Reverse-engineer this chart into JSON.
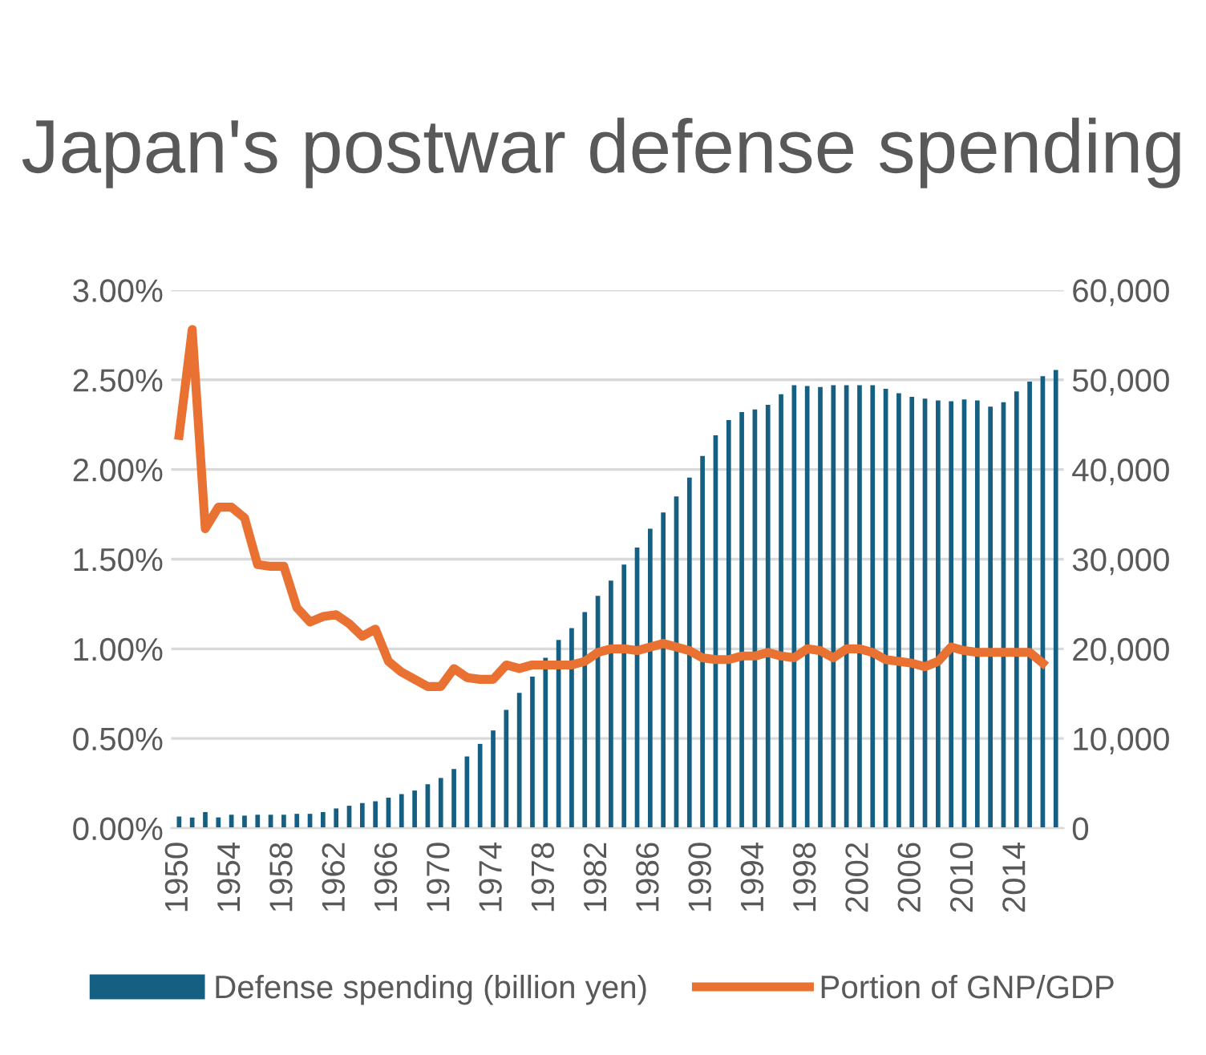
{
  "chart_data": {
    "type": "bar",
    "title": "Japan's postwar defense spending",
    "categories": [
      "1950",
      null,
      null,
      null,
      "1954",
      null,
      null,
      null,
      "1958",
      null,
      null,
      null,
      "1962",
      null,
      null,
      null,
      "1966",
      null,
      null,
      null,
      "1970",
      null,
      null,
      null,
      "1974",
      null,
      null,
      null,
      "1978",
      null,
      null,
      null,
      "1982",
      null,
      null,
      null,
      "1986",
      null,
      null,
      null,
      "1990",
      null,
      null,
      null,
      "1994",
      null,
      null,
      null,
      "1998",
      null,
      null,
      null,
      "2002",
      null,
      null,
      null,
      "2006",
      null,
      null,
      null,
      "2010",
      null,
      null,
      null,
      "2014",
      null,
      null,
      null
    ],
    "series": [
      {
        "name": "Defense spending (billion yen)",
        "axis": "y2",
        "color": "#156082",
        "values": [
          1300,
          1200,
          1800,
          1200,
          1500,
          1400,
          1500,
          1500,
          1500,
          1600,
          1600,
          1800,
          2200,
          2500,
          2800,
          3000,
          3400,
          3800,
          4200,
          4900,
          5600,
          6600,
          8000,
          9400,
          10900,
          13200,
          15100,
          16900,
          19000,
          21000,
          22300,
          24100,
          25900,
          27600,
          29400,
          31300,
          33400,
          35200,
          37000,
          39100,
          41500,
          43800,
          45500,
          46400,
          46700,
          47200,
          48400,
          49400,
          49300,
          49200,
          49400,
          49400,
          49400,
          49400,
          49000,
          48500,
          48100,
          47900,
          47700,
          47600,
          47800,
          47700,
          47000,
          47500,
          48700,
          49800,
          50400,
          51100
        ]
      },
      {
        "name": "Portion of GNP/GDP",
        "type": "line",
        "axis": "y",
        "color": "#e97132",
        "values": [
          2.19,
          2.78,
          1.67,
          1.79,
          1.79,
          1.73,
          1.47,
          1.46,
          1.46,
          1.23,
          1.15,
          1.18,
          1.19,
          1.14,
          1.07,
          1.11,
          0.93,
          0.87,
          0.83,
          0.79,
          0.79,
          0.89,
          0.84,
          0.83,
          0.83,
          0.91,
          0.89,
          0.91,
          0.91,
          0.91,
          0.91,
          0.93,
          0.98,
          1.0,
          1.0,
          0.99,
          1.01,
          1.03,
          1.01,
          0.99,
          0.95,
          0.94,
          0.94,
          0.96,
          0.96,
          0.98,
          0.96,
          0.95,
          1.0,
          0.99,
          0.95,
          1.0,
          1.0,
          0.98,
          0.94,
          0.93,
          0.92,
          0.9,
          0.93,
          1.01,
          0.99,
          0.98,
          0.98,
          0.98,
          0.98,
          0.98,
          0.92,
          null
        ]
      }
    ],
    "ylim": [
      0,
      3
    ],
    "yticks": [
      {
        "value": 0,
        "label": "0.00%"
      },
      {
        "value": 0.5,
        "label": "0.50%"
      },
      {
        "value": 1,
        "label": "1.00%"
      },
      {
        "value": 1.5,
        "label": "1.50%"
      },
      {
        "value": 2,
        "label": "2.00%"
      },
      {
        "value": 2.5,
        "label": "2.50%"
      },
      {
        "value": 3,
        "label": "3.00%"
      }
    ],
    "y2lim": [
      0,
      60000
    ],
    "y2ticks": [
      0,
      {
        "value": 10000,
        "label": "10,000"
      },
      {
        "value": 20000,
        "label": "20,000"
      },
      {
        "value": 30000,
        "label": "30,000"
      },
      {
        "value": 40000,
        "label": "40,000"
      },
      {
        "value": 50000,
        "label": "50,000"
      },
      {
        "value": 60000,
        "label": "60,000"
      }
    ],
    "grid": "y",
    "legend": "bottom",
    "marker": "none",
    "line_style": "solid"
  }
}
